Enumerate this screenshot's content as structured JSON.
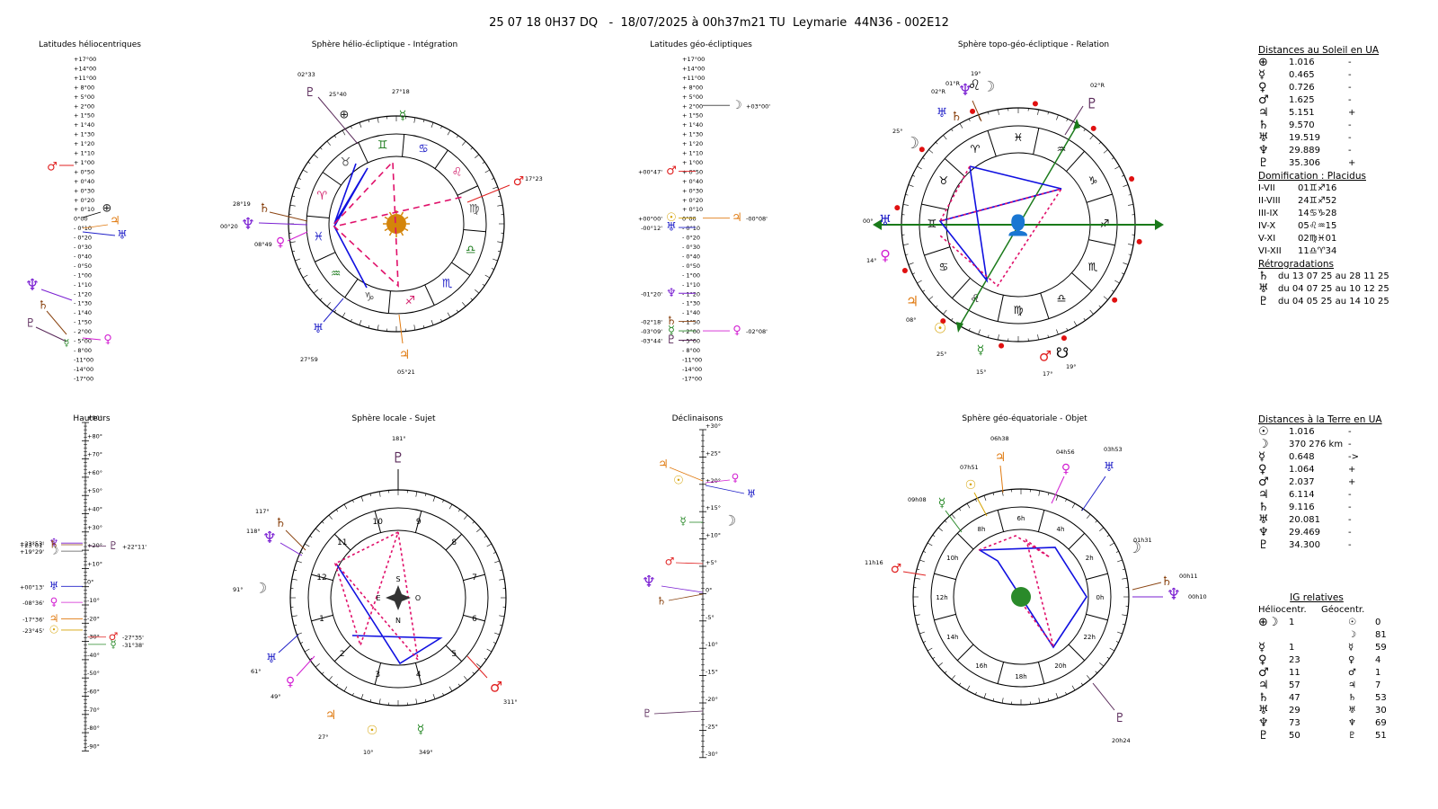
{
  "header": {
    "title": "25 07 18 0H37 DQ   -  18/07/2025 à 00h37m21 TU  Leymarie  44N36 - 002E12"
  },
  "panels": {
    "helio_lat": "Latitudes héliocentriques",
    "helio_sphere": "Sphère hélio-écliptique - Intégration",
    "geo_lat": "Latitudes géo-écliptiques",
    "topo_sphere": "Sphère topo-géo-écliptique - Relation",
    "heights": "Hauteurs",
    "local_sphere": "Sphère locale - Sujet",
    "declinations": "Déclinaisons",
    "equatorial_sphere": "Sphère géo-équatoriale - Objet"
  },
  "colors": {
    "sun": "#d4a100",
    "moon": "#555555",
    "mercury": "#2a8a2a",
    "venus": "#d21fd2",
    "mars": "#e02020",
    "jupiter": "#e07a10",
    "saturn": "#8b4513",
    "uranus": "#2020c8",
    "neptune": "#7a1fd2",
    "pluto": "#5a2a5a",
    "aspect_blue": "#1010e0",
    "aspect_red": "#e0106a",
    "earth": "#222222",
    "green_arrow": "#1a7a1a"
  },
  "helio_lat_scale": [
    "+17°00",
    "+14°00",
    "+11°00",
    "+ 8°00",
    "+ 5°00",
    "+ 2°00",
    "+ 1°50",
    "+ 1°40",
    "+ 1°30",
    "+ 1°20",
    "+ 1°10",
    "+ 1°00",
    "+ 0°50",
    "+ 0°40",
    "+ 0°30",
    "+ 0°20",
    "+ 0°10",
    "0°00",
    "- 0°10",
    "- 0°20",
    "- 0°30",
    "- 0°40",
    "- 0°50",
    "- 1°00",
    "- 1°10",
    "- 1°20",
    "- 1°30",
    "- 1°40",
    "- 1°50",
    "- 2°00",
    "- 5°00",
    "- 8°00",
    "-11°00",
    "-14°00",
    "-17°00"
  ],
  "geo_lat_scale": [
    "+17°00",
    "+14°00",
    "+11°00",
    "+ 8°00",
    "+ 5°00",
    "+ 2°00",
    "+ 1°50",
    "+ 1°40",
    "+ 1°30",
    "+ 1°20",
    "+ 1°10",
    "+ 1°00",
    "+ 0°50",
    "+ 0°40",
    "+ 0°30",
    "+ 0°20",
    "+ 0°10",
    "0°00",
    "- 0°10",
    "- 0°20",
    "- 0°30",
    "- 0°40",
    "- 0°50",
    "- 1°00",
    "- 1°10",
    "- 1°20",
    "- 1°30",
    "- 1°40",
    "- 1°50",
    "- 2°00",
    "- 5°00",
    "- 8°00",
    "-11°00",
    "-14°00",
    "-17°00"
  ],
  "geo_lat_labels": [
    {
      "body": "moon",
      "text": "+03°00'",
      "side": "right",
      "row": 5
    },
    {
      "body": "mars",
      "text": "+00°47'",
      "side": "left",
      "row": 12
    },
    {
      "body": "sun",
      "text": "+00°00'",
      "side": "left",
      "row": 17
    },
    {
      "body": "jupiter",
      "text": "-00°08'",
      "side": "right",
      "row": 17
    },
    {
      "body": "uranus",
      "text": "-00°12'",
      "side": "left",
      "row": 18
    },
    {
      "body": "neptune",
      "text": "-01°20'",
      "side": "left",
      "row": 25
    },
    {
      "body": "saturn",
      "text": "-02°18'",
      "side": "left",
      "row": 28
    },
    {
      "body": "mercury",
      "text": "-03°09'",
      "side": "left",
      "row": 29
    },
    {
      "body": "pluto",
      "text": "-03°44'",
      "side": "left",
      "row": 30
    },
    {
      "body": "venus",
      "text": "-02°08'",
      "side": "right",
      "row": 29
    }
  ],
  "heights_scale": [
    "+90°",
    "+80°",
    "+70°",
    "+60°",
    "+50°",
    "+40°",
    "+30°",
    "+20°",
    "+10°",
    "0°",
    "-10°",
    "-20°",
    "-30°",
    "-40°",
    "-50°",
    "-60°",
    "-70°",
    "-80°",
    "-90°"
  ],
  "heights_labels": [
    {
      "body": "neptune",
      "text": "+23°53'",
      "side": "left",
      "value": 23.9
    },
    {
      "body": "saturn",
      "text": "+23°01'",
      "side": "left",
      "value": 23.0
    },
    {
      "body": "moon",
      "text": "+19°29'",
      "side": "left",
      "value": 19.5
    },
    {
      "body": "uranus",
      "text": "+00°13'",
      "side": "left",
      "value": 0.2
    },
    {
      "body": "venus",
      "text": "-08°36'",
      "side": "left",
      "value": -8.6
    },
    {
      "body": "jupiter",
      "text": "-17°36'",
      "side": "left",
      "value": -17.6
    },
    {
      "body": "sun",
      "text": "-23°45'",
      "side": "left",
      "value": -23.75
    },
    {
      "body": "pluto",
      "text": "+22°11'",
      "side": "right",
      "value": 22.2
    },
    {
      "body": "mars",
      "text": "-27°35'",
      "side": "right",
      "value": -27.6
    },
    {
      "body": "mercury",
      "text": "-31°38'",
      "side": "right",
      "value": -31.6
    }
  ],
  "decl_scale": [
    "+30°",
    "+25°",
    "+20°",
    "+15°",
    "+10°",
    "+5°",
    "0°",
    "-5°",
    "-10°",
    "-15°",
    "-20°",
    "-25°",
    "-30°"
  ],
  "helio_sphere": {
    "outer_labels": [
      {
        "body": "pluto",
        "text": "02°33"
      },
      {
        "body": "earth",
        "text": "25°40"
      },
      {
        "body": "mercury",
        "text": "27°18"
      },
      {
        "body": "mars",
        "text": "17°23"
      },
      {
        "body": "saturn",
        "text": "28°19"
      },
      {
        "body": "neptune",
        "text": "00°20"
      },
      {
        "body": "venus",
        "text": "08°49"
      },
      {
        "body": "uranus",
        "text": "27°59"
      },
      {
        "body": "jupiter",
        "text": "05°21"
      }
    ]
  },
  "topo_sphere": {
    "labels": [
      "01°R",
      "19°",
      "02°R",
      "25°",
      "00°",
      "14°",
      "08°",
      "25°",
      "15°",
      "17°",
      "19°",
      "02°R"
    ]
  },
  "local_sphere": {
    "houses": [
      "9",
      "8",
      "7",
      "6",
      "5",
      "4",
      "3",
      "2",
      "1",
      "12",
      "11",
      "10"
    ],
    "compass": {
      "s": "S",
      "e": "E",
      "o": "O",
      "n": "N"
    },
    "labels": [
      "181°",
      "117°",
      "118°",
      "91°",
      "61°",
      "49°",
      "27°",
      "10°",
      "349°",
      "311°"
    ]
  },
  "equatorial_sphere": {
    "hours": [
      "0h",
      "2h",
      "4h",
      "6h",
      "8h",
      "10h",
      "12h",
      "14h",
      "16h",
      "18h",
      "20h",
      "22h"
    ],
    "labels": [
      "06h38",
      "04h56",
      "03h53",
      "07h51",
      "09h08",
      "01h31",
      "11h16",
      "00h11",
      "00h10",
      "20h24"
    ]
  },
  "sun_distances": {
    "title": "Distances au Soleil en UA",
    "rows": [
      {
        "sym": "⊕",
        "val": "1.016",
        "flag": "-"
      },
      {
        "sym": "☿",
        "val": "0.465",
        "flag": "-"
      },
      {
        "sym": "♀",
        "val": "0.726",
        "flag": "-"
      },
      {
        "sym": "♂",
        "val": "1.625",
        "flag": "-"
      },
      {
        "sym": "♃",
        "val": "5.151",
        "flag": "+"
      },
      {
        "sym": "♄",
        "val": "9.570",
        "flag": "-"
      },
      {
        "sym": "♅",
        "val": "19.519",
        "flag": "-"
      },
      {
        "sym": "♆",
        "val": "29.889",
        "flag": "-"
      },
      {
        "sym": "♇",
        "val": "35.306",
        "flag": "+"
      }
    ]
  },
  "domification": {
    "title": "Domification : Placidus",
    "rows": [
      {
        "k": "I-VII",
        "v": "01♊♐16"
      },
      {
        "k": "II-VIII",
        "v": "24♊♐52"
      },
      {
        "k": "III-IX",
        "v": "14♋♑28"
      },
      {
        "k": "IV-X",
        "v": "05♌♒15"
      },
      {
        "k": "V-XI",
        "v": "02♍♓01"
      },
      {
        "k": "VI-XII",
        "v": "11♎♈34"
      }
    ]
  },
  "retrogradations": {
    "title": "Rétrogradations",
    "rows": [
      {
        "sym": "♄",
        "v": "du 13 07 25 au 28 11 25"
      },
      {
        "sym": "♅",
        "v": "du 04 07 25 au 10 12 25"
      },
      {
        "sym": "♇",
        "v": "du 04 05 25 au 14 10 25"
      }
    ]
  },
  "earth_distances": {
    "title": "Distances à la Terre en UA",
    "rows": [
      {
        "sym": "☉",
        "val": "1.016",
        "flag": "-"
      },
      {
        "sym": "☽",
        "val": "370 276 km",
        "flag": "-"
      },
      {
        "sym": "☿",
        "val": "0.648",
        "flag": "->"
      },
      {
        "sym": "♀",
        "val": "1.064",
        "flag": "+"
      },
      {
        "sym": "♂",
        "val": "2.037",
        "flag": "+"
      },
      {
        "sym": "♃",
        "val": "6.114",
        "flag": "-"
      },
      {
        "sym": "♄",
        "val": "9.116",
        "flag": "-"
      },
      {
        "sym": "♅",
        "val": "20.081",
        "flag": "-"
      },
      {
        "sym": "♆",
        "val": "29.469",
        "flag": "-"
      },
      {
        "sym": "♇",
        "val": "34.300",
        "flag": "-"
      }
    ]
  },
  "ig_relatives": {
    "title": "IG relatives",
    "col_helio": "Héliocentr.",
    "col_geo": "Géocentr.",
    "rows": [
      {
        "hs": "⊕☽",
        "hv": "1",
        "gs": "☉",
        "gv": "0"
      },
      {
        "hs": "",
        "hv": "",
        "gs": "☽",
        "gv": "81"
      },
      {
        "hs": "☿",
        "hv": "1",
        "gs": "☿",
        "gv": "59"
      },
      {
        "hs": "♀",
        "hv": "23",
        "gs": "♀",
        "gv": "4"
      },
      {
        "hs": "♂",
        "hv": "11",
        "gs": "♂",
        "gv": "1"
      },
      {
        "hs": "♃",
        "hv": "57",
        "gs": "♃",
        "gv": "7"
      },
      {
        "hs": "♄",
        "hv": "47",
        "gs": "♄",
        "gv": "53"
      },
      {
        "hs": "♅",
        "hv": "29",
        "gs": "♅",
        "gv": "30"
      },
      {
        "hs": "♆",
        "hv": "73",
        "gs": "♆",
        "gv": "69"
      },
      {
        "hs": "♇",
        "hv": "50",
        "gs": "♇",
        "gv": "51"
      }
    ]
  }
}
